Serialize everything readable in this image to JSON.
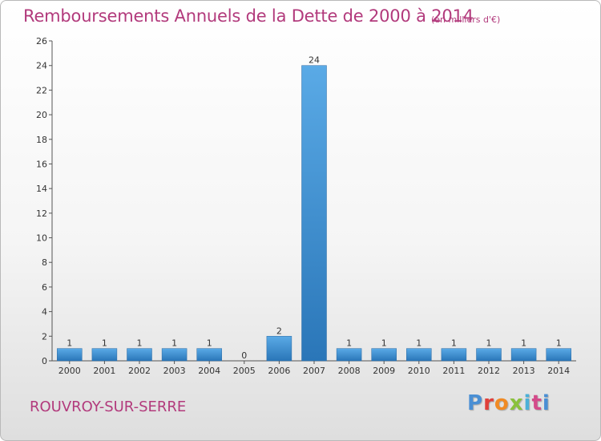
{
  "chart_data": {
    "type": "bar",
    "title": "Remboursements Annuels de la Dette de 2000 à 2014",
    "subtitle": "(en milliers d'€)",
    "categories": [
      "2000",
      "2001",
      "2002",
      "2003",
      "2004",
      "2005",
      "2006",
      "2007",
      "2008",
      "2009",
      "2010",
      "2011",
      "2012",
      "2013",
      "2014"
    ],
    "values": [
      1,
      1,
      1,
      1,
      1,
      0,
      2,
      24,
      1,
      1,
      1,
      1,
      1,
      1,
      1
    ],
    "ylim": [
      0,
      26
    ],
    "yticks": [
      0,
      2,
      4,
      6,
      8,
      10,
      12,
      14,
      16,
      18,
      20,
      22,
      24,
      26
    ],
    "grid": false
  },
  "footer": {
    "commune": "ROUVROY-SUR-SERRE",
    "brand": [
      "P",
      "r",
      "o",
      "x",
      "i",
      "t",
      "i"
    ]
  },
  "colors": {
    "bar_top": "#5aaae6",
    "bar_bottom": "#2a76b8",
    "title": "#b23a7c"
  }
}
